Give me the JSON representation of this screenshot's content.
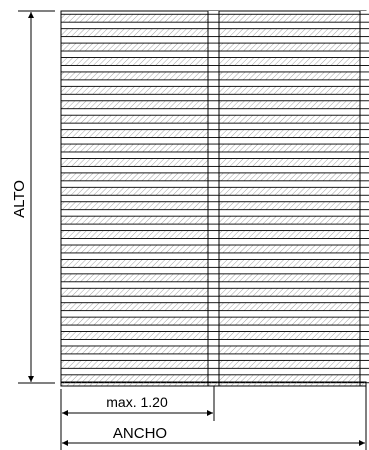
{
  "labels": {
    "alto": "ALTO",
    "ancho": "ANCHO",
    "max_span": "max. 1.20"
  },
  "colors": {
    "line": "#000000",
    "hatch": "#9a9a9a",
    "background": "#ffffff"
  }
}
